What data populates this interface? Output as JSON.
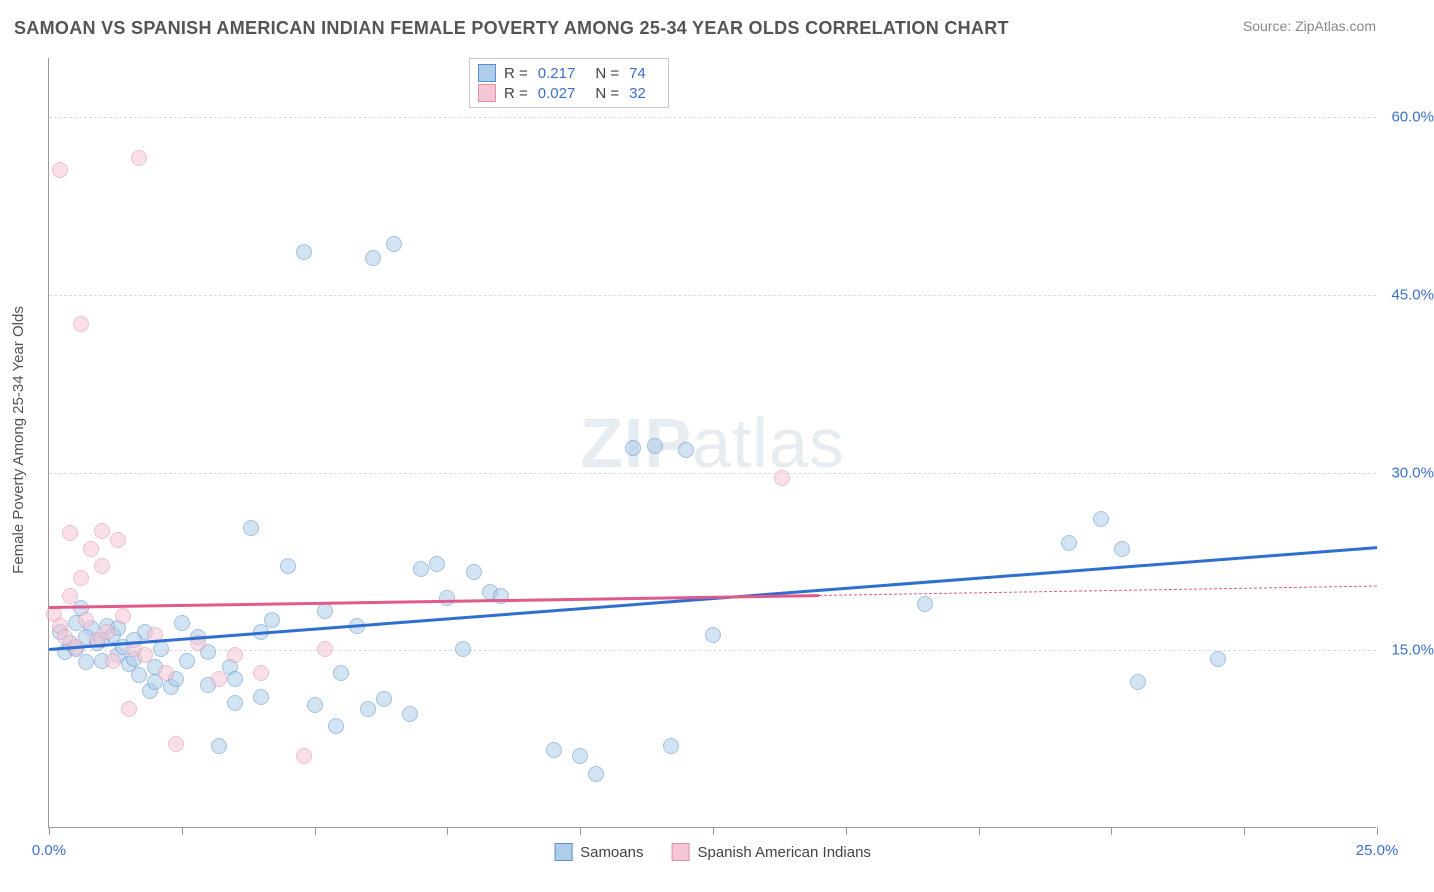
{
  "title": "SAMOAN VS SPANISH AMERICAN INDIAN FEMALE POVERTY AMONG 25-34 YEAR OLDS CORRELATION CHART",
  "source": "Source: ZipAtlas.com",
  "ylabel": "Female Poverty Among 25-34 Year Olds",
  "watermark_1": "ZIP",
  "watermark_2": "atlas",
  "chart": {
    "type": "scatter",
    "xlim": [
      0,
      25
    ],
    "ylim": [
      0,
      65
    ],
    "xticks": [
      0,
      2.5,
      5,
      7.5,
      10,
      12.5,
      15,
      17.5,
      20,
      22.5,
      25
    ],
    "xtick_labels": {
      "0": "0.0%",
      "25": "25.0%"
    },
    "yticks": [
      15,
      30,
      45,
      60
    ],
    "ytick_labels": [
      "15.0%",
      "30.0%",
      "45.0%",
      "60.0%"
    ],
    "grid_color": "#dddddd",
    "axis_color": "#999999",
    "background": "#ffffff",
    "marker_radius": 8,
    "marker_opacity": 0.55,
    "line_width": 2.5
  },
  "series": [
    {
      "name": "Samoans",
      "color_fill": "#aecde8",
      "color_stroke": "#5b8fd0",
      "line_color": "#2f6fd0",
      "R": "0.217",
      "N": "74",
      "trend": {
        "x1": 0,
        "y1": 15.2,
        "x2": 25,
        "y2": 23.8
      },
      "points": [
        [
          0.2,
          16.5
        ],
        [
          0.3,
          14.8
        ],
        [
          0.5,
          17.2
        ],
        [
          0.5,
          15.0
        ],
        [
          0.6,
          18.5
        ],
        [
          0.7,
          13.9
        ],
        [
          0.8,
          16.8
        ],
        [
          0.9,
          15.5
        ],
        [
          1.0,
          15.8
        ],
        [
          1.1,
          17.0
        ],
        [
          1.2,
          16.2
        ],
        [
          1.3,
          14.5
        ],
        [
          1.4,
          15.2
        ],
        [
          1.5,
          13.8
        ],
        [
          1.6,
          14.2
        ],
        [
          1.7,
          12.8
        ],
        [
          1.8,
          16.5
        ],
        [
          1.9,
          11.5
        ],
        [
          2.0,
          12.2
        ],
        [
          2.1,
          15.0
        ],
        [
          2.3,
          11.8
        ],
        [
          2.4,
          12.5
        ],
        [
          2.6,
          14.0
        ],
        [
          2.8,
          16.0
        ],
        [
          3.0,
          12.0
        ],
        [
          3.2,
          6.8
        ],
        [
          3.4,
          13.5
        ],
        [
          3.5,
          10.5
        ],
        [
          3.8,
          25.2
        ],
        [
          4.0,
          11.0
        ],
        [
          4.2,
          17.5
        ],
        [
          4.5,
          22.0
        ],
        [
          4.8,
          48.5
        ],
        [
          5.0,
          10.3
        ],
        [
          5.2,
          18.2
        ],
        [
          5.4,
          8.5
        ],
        [
          5.8,
          17.0
        ],
        [
          6.0,
          10.0
        ],
        [
          6.1,
          48.0
        ],
        [
          6.3,
          10.8
        ],
        [
          6.5,
          49.2
        ],
        [
          6.8,
          9.5
        ],
        [
          7.0,
          21.8
        ],
        [
          7.3,
          22.2
        ],
        [
          7.5,
          19.3
        ],
        [
          7.8,
          15.0
        ],
        [
          8.0,
          21.5
        ],
        [
          8.3,
          19.8
        ],
        [
          8.5,
          19.5
        ],
        [
          9.5,
          6.5
        ],
        [
          10.0,
          6.0
        ],
        [
          10.3,
          4.5
        ],
        [
          11.0,
          32.0
        ],
        [
          11.4,
          32.2
        ],
        [
          11.7,
          6.8
        ],
        [
          12.0,
          31.8
        ],
        [
          12.5,
          16.2
        ],
        [
          16.5,
          18.8
        ],
        [
          19.2,
          24.0
        ],
        [
          19.8,
          26.0
        ],
        [
          20.2,
          23.5
        ],
        [
          20.5,
          12.2
        ],
        [
          22.0,
          14.2
        ],
        [
          0.4,
          15.5
        ],
        [
          0.7,
          16.0
        ],
        [
          1.0,
          14.0
        ],
        [
          1.3,
          16.8
        ],
        [
          1.6,
          15.8
        ],
        [
          2.0,
          13.5
        ],
        [
          2.5,
          17.2
        ],
        [
          3.0,
          14.8
        ],
        [
          3.5,
          12.5
        ],
        [
          4.0,
          16.5
        ],
        [
          5.5,
          13.0
        ]
      ]
    },
    {
      "name": "Spanish American Indians",
      "color_fill": "#f5c6d4",
      "color_stroke": "#e38fab",
      "line_color": "#e05a8a",
      "R": "0.027",
      "N": "32",
      "trend_solid": {
        "x1": 0,
        "y1": 18.7,
        "x2": 14.5,
        "y2": 19.7
      },
      "trend_dash": {
        "x1": 14.5,
        "y1": 19.7,
        "x2": 25,
        "y2": 20.5
      },
      "points": [
        [
          0.1,
          18.0
        ],
        [
          0.2,
          17.0
        ],
        [
          0.2,
          55.5
        ],
        [
          0.3,
          16.0
        ],
        [
          0.4,
          19.5
        ],
        [
          0.4,
          24.8
        ],
        [
          0.5,
          15.2
        ],
        [
          0.6,
          21.0
        ],
        [
          0.6,
          42.5
        ],
        [
          0.7,
          17.5
        ],
        [
          0.8,
          23.5
        ],
        [
          0.9,
          15.8
        ],
        [
          1.0,
          22.0
        ],
        [
          1.0,
          25.0
        ],
        [
          1.1,
          16.5
        ],
        [
          1.2,
          14.0
        ],
        [
          1.3,
          24.2
        ],
        [
          1.4,
          17.8
        ],
        [
          1.5,
          10.0
        ],
        [
          1.6,
          15.0
        ],
        [
          1.7,
          56.5
        ],
        [
          1.8,
          14.5
        ],
        [
          2.0,
          16.2
        ],
        [
          2.2,
          13.0
        ],
        [
          2.4,
          7.0
        ],
        [
          2.8,
          15.5
        ],
        [
          3.2,
          12.5
        ],
        [
          3.5,
          14.5
        ],
        [
          4.0,
          13.0
        ],
        [
          4.8,
          6.0
        ],
        [
          5.2,
          15.0
        ],
        [
          13.8,
          29.5
        ]
      ]
    }
  ],
  "stats_labels": {
    "R": "R =",
    "N": "N ="
  },
  "legend_bottom": [
    "Samoans",
    "Spanish American Indians"
  ]
}
